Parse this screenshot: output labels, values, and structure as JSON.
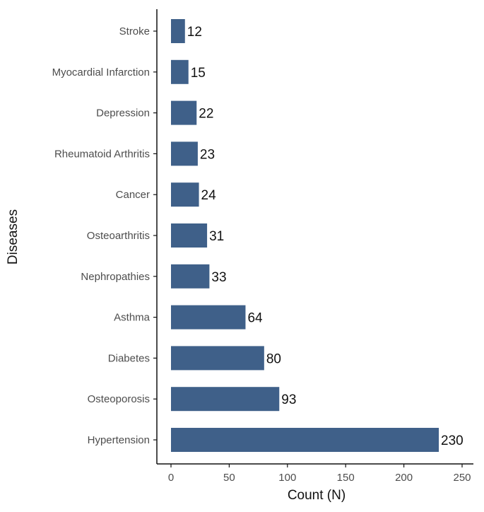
{
  "chart_data": {
    "type": "bar",
    "orientation": "horizontal",
    "title": "",
    "xlabel": "Count (N)",
    "ylabel": "Diseases",
    "categories": [
      "Stroke",
      "Myocardial Infarction",
      "Depression",
      "Rheumatoid Arthritis",
      "Cancer",
      "Osteoarthritis",
      "Nephropathies",
      "Asthma",
      "Diabetes",
      "Osteoporosis",
      "Hypertension"
    ],
    "values": [
      12,
      15,
      22,
      23,
      24,
      31,
      33,
      64,
      80,
      93,
      230
    ],
    "xlim": [
      0,
      250
    ],
    "x_ticks": [
      0,
      50,
      100,
      150,
      200,
      250
    ],
    "grid": false,
    "legend": "none",
    "colors": {
      "bar": "#3f6089",
      "axis": "#111111",
      "tick_label": "#4d4d4d",
      "value_label": "#111111"
    }
  }
}
